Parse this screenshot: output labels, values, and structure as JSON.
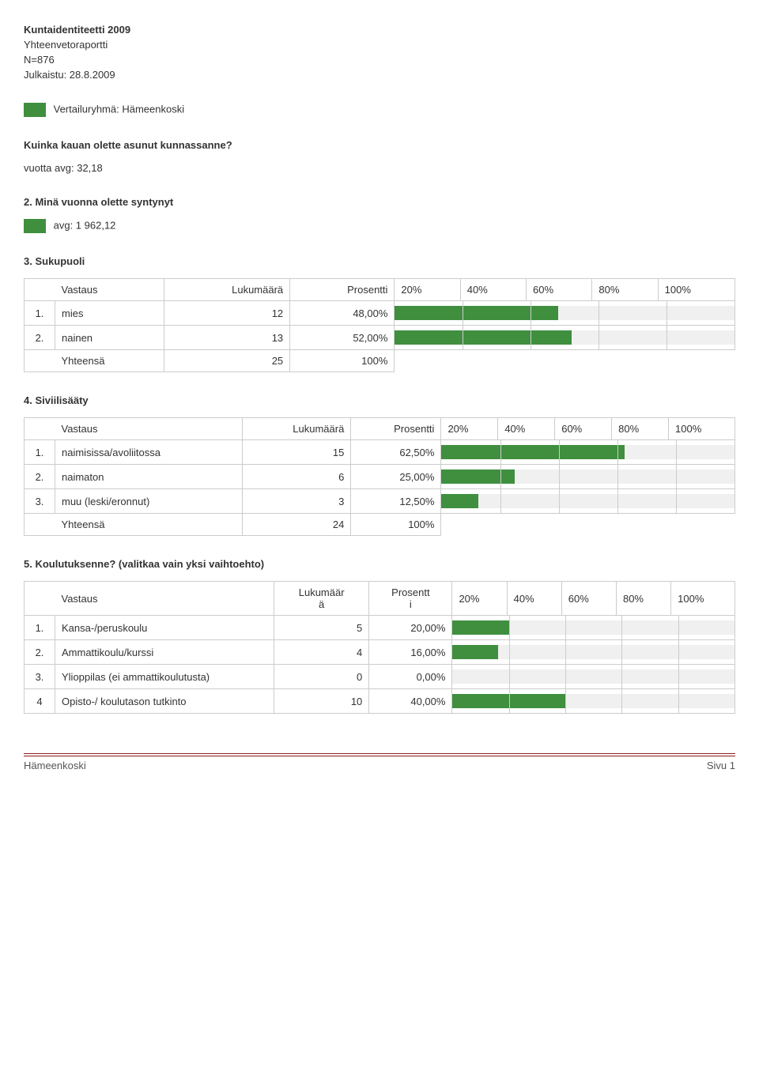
{
  "colors": {
    "bar": "#3f8f3f",
    "grid": "#cccccc",
    "bar_bg": "#f0f0f0",
    "footer_rule": "#8a1a1a"
  },
  "header": {
    "title": "Kuntaidentiteetti 2009",
    "subtitle": "Yhteenvetoraportti",
    "n": "N=876",
    "published": "Julkaistu: 28.8.2009",
    "compare_label": "Vertailuryhmä: Hämeenkoski"
  },
  "q1": {
    "text": "Kuinka kauan olette asunut kunnassanne?",
    "avg_label": "vuotta avg: 32,18"
  },
  "q2": {
    "text": "2. Minä vuonna olette syntynyt",
    "avg_label": "avg: 1 962,12"
  },
  "ticks": [
    "20%",
    "40%",
    "60%",
    "80%",
    "100%"
  ],
  "col": {
    "vastaus": "Vastaus",
    "lukumaara": "Lukumäärä",
    "prosentti": "Prosentti",
    "lukumaar": "Lukumäär",
    "a": "ä",
    "prosentt": "Prosentt",
    "i": "i"
  },
  "q3": {
    "title": "3. Sukupuoli",
    "rows": [
      {
        "n": "1.",
        "label": "mies",
        "count": "12",
        "pct": "48,00%",
        "val": 48
      },
      {
        "n": "2.",
        "label": "nainen",
        "count": "13",
        "pct": "52,00%",
        "val": 52
      }
    ],
    "total": {
      "label": "Yhteensä",
      "count": "25",
      "pct": "100%"
    }
  },
  "q4": {
    "title": "4. Siviilisääty",
    "rows": [
      {
        "n": "1.",
        "label": "naimisissa/avoliitossa",
        "count": "15",
        "pct": "62,50%",
        "val": 62.5
      },
      {
        "n": "2.",
        "label": "naimaton",
        "count": "6",
        "pct": "25,00%",
        "val": 25
      },
      {
        "n": "3.",
        "label": "muu (leski/eronnut)",
        "count": "3",
        "pct": "12,50%",
        "val": 12.5
      }
    ],
    "total": {
      "label": "Yhteensä",
      "count": "24",
      "pct": "100%"
    }
  },
  "q5": {
    "title": "5. Koulutuksenne? (valitkaa vain yksi vaihtoehto)",
    "rows": [
      {
        "n": "1.",
        "label": "Kansa-/peruskoulu",
        "count": "5",
        "pct": "20,00%",
        "val": 20
      },
      {
        "n": "2.",
        "label": "Ammattikoulu/kurssi",
        "count": "4",
        "pct": "16,00%",
        "val": 16
      },
      {
        "n": "3.",
        "label": "Ylioppilas (ei ammattikoulutusta)",
        "count": "0",
        "pct": "0,00%",
        "val": 0
      },
      {
        "n": "4",
        "label": "Opisto-/ koulutason tutkinto",
        "count": "10",
        "pct": "40,00%",
        "val": 40
      }
    ]
  },
  "footer": {
    "left": "Hämeenkoski",
    "right": "Sivu 1"
  }
}
